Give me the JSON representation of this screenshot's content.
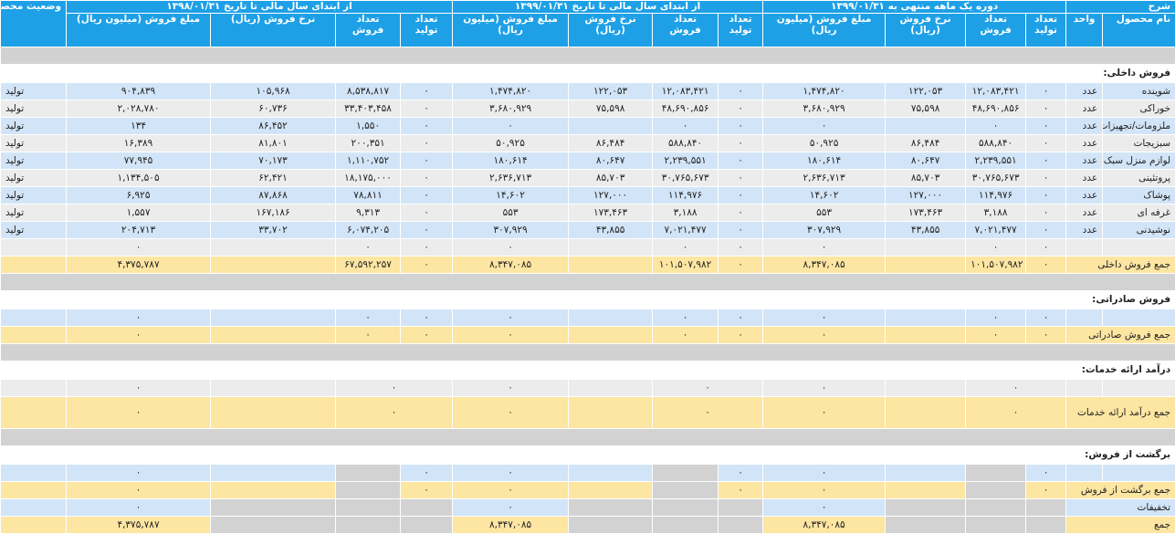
{
  "header": {
    "sharh": "شرح",
    "product_name": "نام محصول",
    "unit": "واحد",
    "period1": "دوره یک ماهه منتهی به ۱۳۹۹/۰۱/۳۱",
    "period2": "از ابتدای سال مالی تا تاریخ ۱۳۹۹/۰۱/۳۱",
    "period3": "از ابتدای سال مالی تا تاریخ ۱۳۹۸/۰۱/۳۱",
    "status": "وضعیت محصول-واحد",
    "production_count": "تعداد تولید",
    "sales_count": "تعداد فروش",
    "sales_rate": "نرخ فروش (ریال)",
    "sales_amount": "مبلغ فروش (میلیون ریال)"
  },
  "sections": {
    "domestic": "فروش داخلی:",
    "export": "فروش صادراتی:",
    "services": "درآمد ارائه خدمات:",
    "returns": "برگشت از فروش:"
  },
  "rows": [
    {
      "name": "شوینده",
      "unit": "عدد",
      "p1": [
        "۰",
        "۱۲,۰۸۳,۴۲۱",
        "۱۲۲,۰۵۳",
        "۱,۴۷۴,۸۲۰"
      ],
      "p2": [
        "۰",
        "۱۲,۰۸۳,۴۲۱",
        "۱۲۲,۰۵۳",
        "۱,۴۷۴,۸۲۰"
      ],
      "p3": [
        "۰",
        "۸,۵۳۸,۸۱۷",
        "۱۰۵,۹۶۸",
        "۹۰۴,۸۳۹"
      ],
      "status": "تولید"
    },
    {
      "name": "خوراکی",
      "unit": "عدد",
      "p1": [
        "۰",
        "۴۸,۶۹۰,۸۵۶",
        "۷۵,۵۹۸",
        "۳,۶۸۰,۹۲۹"
      ],
      "p2": [
        "۰",
        "۴۸,۶۹۰,۸۵۶",
        "۷۵,۵۹۸",
        "۳,۶۸۰,۹۲۹"
      ],
      "p3": [
        "۰",
        "۳۳,۴۰۳,۴۵۸",
        "۶۰,۷۳۶",
        "۲,۰۲۸,۷۸۰"
      ],
      "status": "تولید"
    },
    {
      "name": "ملزومات/تجهیزات",
      "unit": "عدد",
      "p1": [
        "۰",
        "۰",
        "",
        "۰"
      ],
      "p2": [
        "۰",
        "۰",
        "",
        "۰"
      ],
      "p3": [
        "۰",
        "۱,۵۵۰",
        "۸۶,۴۵۲",
        "۱۳۴"
      ],
      "status": "تولید"
    },
    {
      "name": "سبزیجات",
      "unit": "عدد",
      "p1": [
        "۰",
        "۵۸۸,۸۴۰",
        "۸۶,۴۸۴",
        "۵۰,۹۲۵"
      ],
      "p2": [
        "۰",
        "۵۸۸,۸۴۰",
        "۸۶,۴۸۴",
        "۵۰,۹۲۵"
      ],
      "p3": [
        "۰",
        "۲۰۰,۳۵۱",
        "۸۱,۸۰۱",
        "۱۶,۳۸۹"
      ],
      "status": "تولید"
    },
    {
      "name": "لوازم منزل سبک",
      "unit": "عدد",
      "p1": [
        "۰",
        "۲,۲۳۹,۵۵۱",
        "۸۰,۶۴۷",
        "۱۸۰,۶۱۴"
      ],
      "p2": [
        "۰",
        "۲,۲۳۹,۵۵۱",
        "۸۰,۶۴۷",
        "۱۸۰,۶۱۴"
      ],
      "p3": [
        "۰",
        "۱,۱۱۰,۷۵۲",
        "۷۰,۱۷۳",
        "۷۷,۹۴۵"
      ],
      "status": "تولید"
    },
    {
      "name": "پروتئینی",
      "unit": "عدد",
      "p1": [
        "۰",
        "۳۰,۷۶۵,۶۷۳",
        "۸۵,۷۰۳",
        "۲,۶۳۶,۷۱۳"
      ],
      "p2": [
        "۰",
        "۳۰,۷۶۵,۶۷۳",
        "۸۵,۷۰۳",
        "۲,۶۳۶,۷۱۳"
      ],
      "p3": [
        "۰",
        "۱۸,۱۷۵,۰۰۰",
        "۶۲,۴۲۱",
        "۱,۱۳۴,۵۰۵"
      ],
      "status": "تولید"
    },
    {
      "name": "پوشاک",
      "unit": "عدد",
      "p1": [
        "۰",
        "۱۱۴,۹۷۶",
        "۱۲۷,۰۰۰",
        "۱۴,۶۰۲"
      ],
      "p2": [
        "۰",
        "۱۱۴,۹۷۶",
        "۱۲۷,۰۰۰",
        "۱۴,۶۰۲"
      ],
      "p3": [
        "۰",
        "۷۸,۸۱۱",
        "۸۷,۸۶۸",
        "۶,۹۲۵"
      ],
      "status": "تولید"
    },
    {
      "name": "غرفه ای",
      "unit": "عدد",
      "p1": [
        "۰",
        "۳,۱۸۸",
        "۱۷۳,۴۶۳",
        "۵۵۳"
      ],
      "p2": [
        "۰",
        "۳,۱۸۸",
        "۱۷۳,۴۶۳",
        "۵۵۳"
      ],
      "p3": [
        "۰",
        "۹,۳۱۳",
        "۱۶۷,۱۸۶",
        "۱,۵۵۷"
      ],
      "status": "تولید"
    },
    {
      "name": "نوشیدنی",
      "unit": "عدد",
      "p1": [
        "۰",
        "۷,۰۲۱,۴۷۷",
        "۴۳,۸۵۵",
        "۳۰۷,۹۲۹"
      ],
      "p2": [
        "۰",
        "۷,۰۲۱,۴۷۷",
        "۴۳,۸۵۵",
        "۳۰۷,۹۲۹"
      ],
      "p3": [
        "۰",
        "۶,۰۷۴,۲۰۵",
        "۳۳,۷۰۲",
        "۲۰۴,۷۱۳"
      ],
      "status": "تولید"
    }
  ],
  "domestic_blank": {
    "p1": [
      "۰",
      "۰",
      "",
      "۰"
    ],
    "p2": [
      "۰",
      "۰",
      "",
      "۰"
    ],
    "p3": [
      "۰",
      "۰",
      "",
      "۰"
    ]
  },
  "domestic_total": {
    "label": "جمع فروش داخلی",
    "p1": [
      "۰",
      "۱۰۱,۵۰۷,۹۸۲",
      "",
      "۸,۳۴۷,۰۸۵"
    ],
    "p2": [
      "۰",
      "۱۰۱,۵۰۷,۹۸۲",
      "",
      "۸,۳۴۷,۰۸۵"
    ],
    "p3": [
      "۰",
      "۶۷,۵۹۲,۲۵۷",
      "",
      "۴,۳۷۵,۷۸۷"
    ]
  },
  "export_blank": {
    "p1": [
      "۰",
      "۰",
      "",
      "۰"
    ],
    "p2": [
      "۰",
      "۰",
      "",
      "۰"
    ],
    "p3": [
      "۰",
      "۰",
      "",
      "۰"
    ]
  },
  "export_total": {
    "label": "جمع فروش صادراتی",
    "p1": [
      "۰",
      "۰",
      "",
      "۰"
    ],
    "p2": [
      "۰",
      "۰",
      "",
      "۰"
    ],
    "p3": [
      "۰",
      "۰",
      "",
      "۰"
    ]
  },
  "services_blank": {
    "p1": [
      "۰",
      "",
      "۰"
    ],
    "p2": [
      "۰",
      "",
      "۰"
    ],
    "p3": [
      "۰",
      "",
      "۰"
    ]
  },
  "services_total": {
    "label": "جمع درآمد ارائه خدمات",
    "p1": [
      "۰",
      "",
      "۰"
    ],
    "p2": [
      "۰",
      "",
      "۰"
    ],
    "p3": [
      "۰",
      "",
      "۰"
    ]
  },
  "returns_blank": {
    "p1": [
      "۰",
      "",
      "۰"
    ],
    "p2": [
      "۰",
      "",
      "۰"
    ],
    "p3": [
      "۰",
      "",
      "۰"
    ]
  },
  "returns_total": {
    "label": "جمع برگشت از فروش",
    "p1": [
      "۰",
      "",
      "۰"
    ],
    "p2": [
      "۰",
      "",
      "۰"
    ],
    "p3": [
      "۰",
      "",
      "۰"
    ]
  },
  "discounts": {
    "label": "تخفیفات",
    "p1": "۰",
    "p2": "۰",
    "p3": "۰"
  },
  "grand_total": {
    "label": "جمع",
    "p1": "۸,۳۴۷,۰۸۵",
    "p2": "۸,۳۴۷,۰۸۵",
    "p3": "۴,۳۷۵,۷۸۷"
  }
}
